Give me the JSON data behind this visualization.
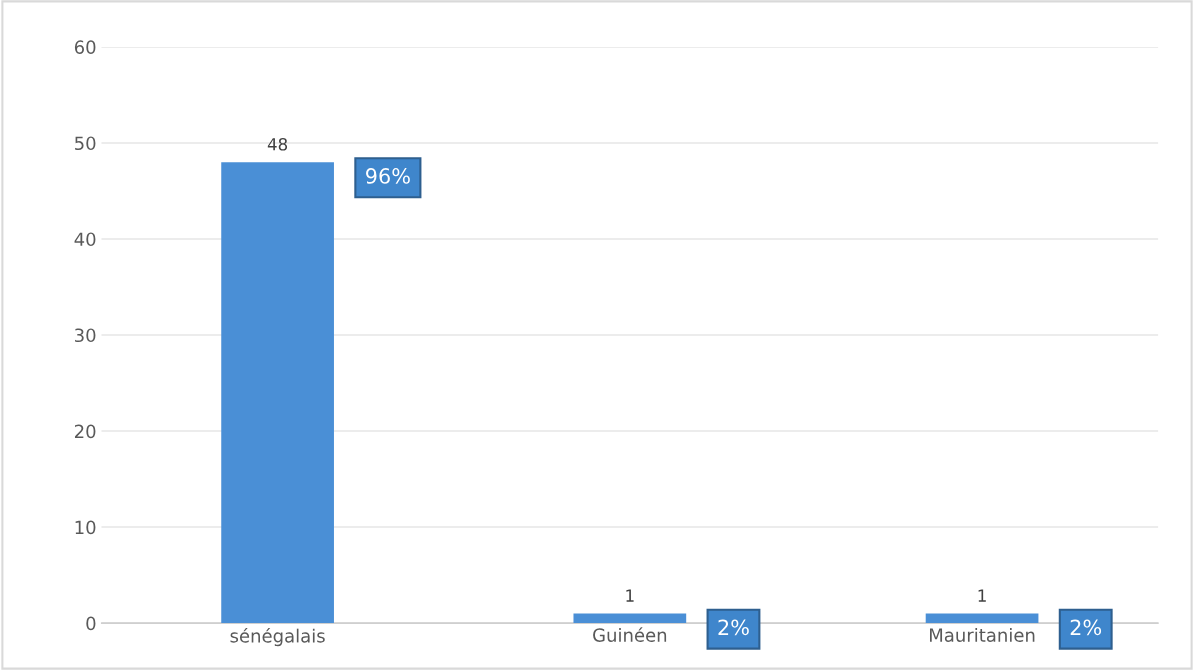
{
  "chart_data": {
    "type": "bar",
    "categories": [
      "sénégalais",
      "Guinéen",
      "Mauritanien"
    ],
    "values": [
      48,
      1,
      1
    ],
    "color": "#4a8fd6",
    "ylim": [
      0,
      60
    ],
    "yticks": [
      0,
      10,
      20,
      30,
      40,
      50,
      60
    ],
    "grid": "y",
    "data_labels": true,
    "annotations": [
      "96%",
      "2%",
      "2%"
    ]
  }
}
